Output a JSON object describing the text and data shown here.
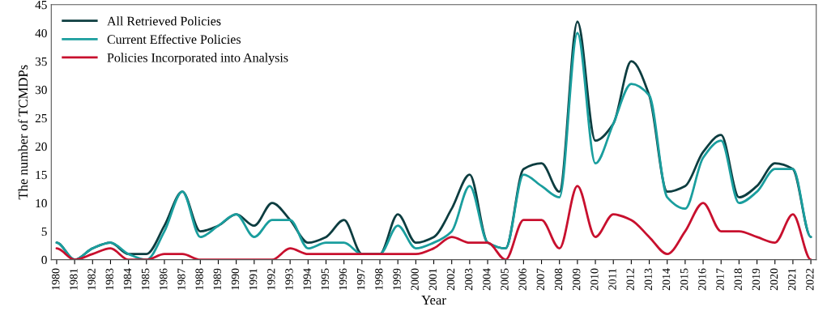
{
  "chart_data": {
    "type": "line",
    "xlabel": "Year",
    "ylabel": "The number of TCMDPs",
    "categories": [
      "1980",
      "1981",
      "1982",
      "1983",
      "1984",
      "1985",
      "1986",
      "1987",
      "1988",
      "1989",
      "1990",
      "1991",
      "1992",
      "1993",
      "1994",
      "1995",
      "1996",
      "1997",
      "1998",
      "1999",
      "2000",
      "2001",
      "2002",
      "2003",
      "2004",
      "2005",
      "2006",
      "2007",
      "2008",
      "2009",
      "2010",
      "2011",
      "2012",
      "2013",
      "2014",
      "2015",
      "2016",
      "2017",
      "2018",
      "2019",
      "2020",
      "2021",
      "2022"
    ],
    "series": [
      {
        "name": "All Retrieved Policies",
        "color": "#0d3d40",
        "values": [
          3,
          0,
          2,
          3,
          1,
          1,
          6,
          12,
          5,
          6,
          8,
          6,
          10,
          7,
          3,
          4,
          7,
          1,
          1,
          8,
          3,
          4,
          9,
          15,
          3,
          2,
          16,
          17,
          12,
          42,
          21,
          24,
          35,
          29,
          12,
          13,
          19,
          22,
          11,
          13,
          17,
          16,
          4
        ]
      },
      {
        "name": "Current Effective Policies",
        "color": "#1a9e9e",
        "values": [
          3,
          0,
          2,
          3,
          1,
          0,
          5,
          12,
          4,
          6,
          8,
          4,
          7,
          7,
          2,
          3,
          3,
          1,
          1,
          6,
          2,
          3,
          5,
          13,
          3,
          2,
          15,
          13,
          11,
          40,
          17,
          24,
          31,
          29,
          11,
          9,
          18,
          21,
          10,
          12,
          16,
          16,
          4
        ]
      },
      {
        "name": "Policies Incorporated into Analysis",
        "color": "#c8102e",
        "values": [
          2,
          0,
          1,
          2,
          0,
          0,
          1,
          1,
          0,
          0,
          0,
          0,
          0,
          2,
          1,
          1,
          1,
          1,
          1,
          1,
          1,
          2,
          4,
          3,
          3,
          0,
          7,
          7,
          2,
          13,
          4,
          8,
          7,
          4,
          1,
          5,
          10,
          5,
          5,
          4,
          3,
          8,
          0
        ]
      }
    ],
    "ylim": [
      0,
      45
    ],
    "yticks": [
      0,
      5,
      10,
      15,
      20,
      25,
      30,
      35,
      40,
      45
    ],
    "grid": false,
    "legend": "top left",
    "marker": "none",
    "line_style": "solid"
  }
}
